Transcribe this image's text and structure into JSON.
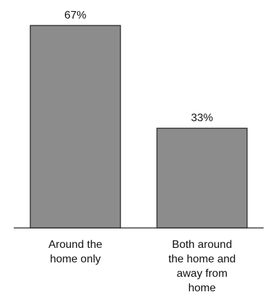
{
  "chart_data": {
    "type": "bar",
    "categories": [
      [
        "Around the",
        "home only"
      ],
      [
        "Both around",
        "the home and",
        "away from",
        "home"
      ]
    ],
    "values": [
      67,
      33
    ],
    "data_labels": [
      "67%",
      "33%"
    ],
    "unit": "%",
    "ylim": [
      0,
      67
    ],
    "grid": false,
    "legend": "none",
    "colors": {
      "bar_fill": "#8c8c8c",
      "bar_stroke": "#1a1a1a",
      "axis": "#1a1a1a",
      "text": "#111111"
    }
  }
}
